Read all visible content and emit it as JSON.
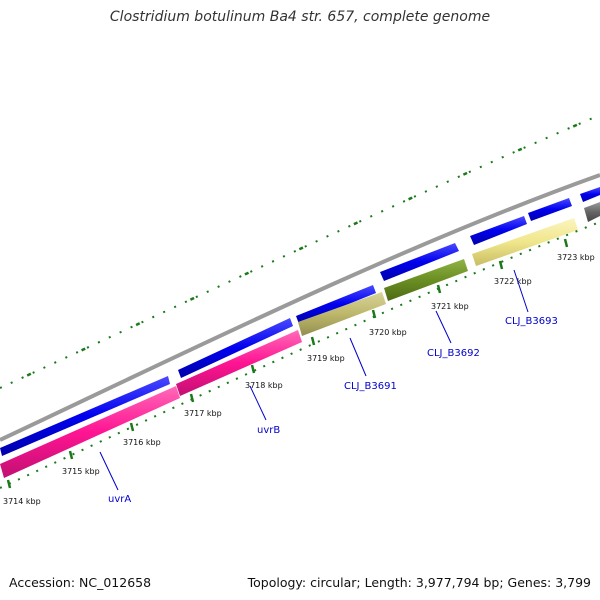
{
  "title": "Clostridium botulinum Ba4 str. 657, complete genome",
  "footer": {
    "accession": "Accession: NC_012658",
    "summary": "Topology: circular; Length: 3,977,794 bp; Genes: 3,799"
  },
  "ticks": [
    "3714 kbp",
    "3715 kbp",
    "3716 kbp",
    "3717 kbp",
    "3718 kbp",
    "3719 kbp",
    "3720 kbp",
    "3721 kbp",
    "3722 kbp",
    "3723 kbp"
  ],
  "genes": [
    "uvrA",
    "uvrB",
    "CLJ_B3691",
    "CLJ_B3692",
    "CLJ_B3693"
  ],
  "colors": {
    "backbone": "#999999",
    "forward_genes": "#0000ee",
    "uvrA": "#ff1493",
    "uvrB": "#ff1493",
    "CLJ_B3691": "#bdb76b",
    "CLJ_B3692": "#6b8e23",
    "CLJ_B3693": "#f0e68c",
    "trailing_gene": "#666666",
    "ticks": "#1a7a1a",
    "gene_label": "#0000cc"
  }
}
